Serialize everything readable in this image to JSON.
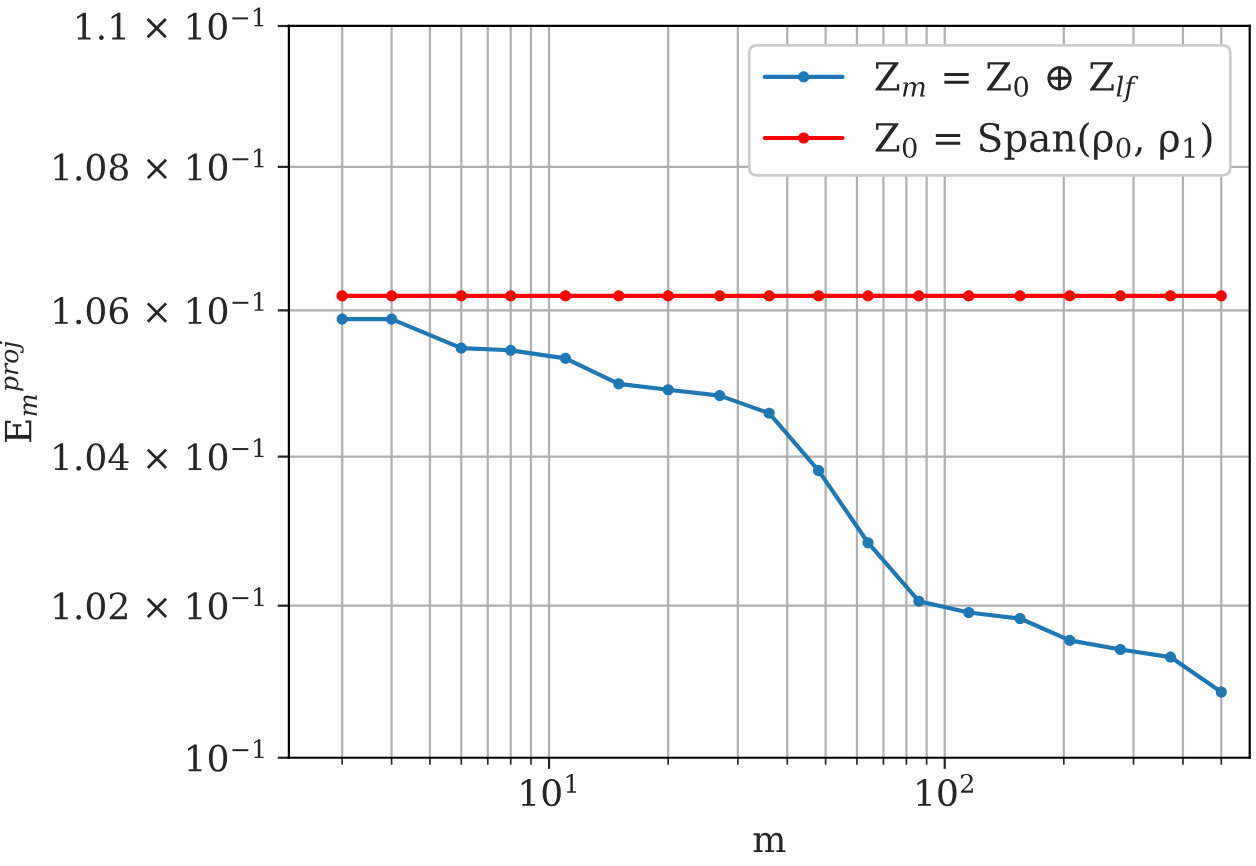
{
  "chart_data": {
    "type": "line",
    "xlabel": "m",
    "ylabel": "E$_{m}$$^{proj}$",
    "log": "xy",
    "grid": true,
    "legend": "top right",
    "marker": "circle",
    "line_style": "solid",
    "x": [
      3,
      4,
      6,
      8,
      11,
      15,
      20,
      27,
      36,
      48,
      64,
      86,
      115,
      155,
      207,
      278,
      372,
      500
    ],
    "xlim": [
      2.2,
      590
    ],
    "xticks": [
      {
        "value": 10,
        "label": "10$^{1}$"
      },
      {
        "value": 100,
        "label": "10$^{2}$"
      }
    ],
    "ylim": [
      0.1,
      0.11
    ],
    "yticks": [
      {
        "value": 0.1,
        "label": "10$^{−1}$"
      },
      {
        "value": 0.102,
        "label": "1.02 × 10$^{−1}$"
      },
      {
        "value": 0.104,
        "label": "1.04 × 10$^{−1}$"
      },
      {
        "value": 0.106,
        "label": "1.06 × 10$^{−1}$"
      },
      {
        "value": 0.108,
        "label": "1.08 × 10$^{−1}$"
      },
      {
        "value": 0.11,
        "label": "1.1 × 10$^{−1}$"
      }
    ],
    "series": [
      {
        "name": "Z$_{m}$ = Z$_{0}$ ⊕ Z$_{lf}$",
        "color": "#1f77b4",
        "values": [
          0.10588,
          0.10588,
          0.10548,
          0.10545,
          0.10534,
          0.10499,
          0.10491,
          0.10483,
          0.10459,
          0.10381,
          0.10284,
          0.10206,
          0.10191,
          0.10183,
          0.10154,
          0.10142,
          0.10132,
          0.10086
        ]
      },
      {
        "name": "Z$_{0}$ = Span(ρ$_{0}$, ρ$_{1}$)",
        "color": "#ff0000",
        "values": [
          0.1062,
          0.1062,
          0.1062,
          0.1062,
          0.1062,
          0.1062,
          0.1062,
          0.1062,
          0.1062,
          0.1062,
          0.1062,
          0.1062,
          0.1062,
          0.1062,
          0.1062,
          0.1062,
          0.1062,
          0.1062
        ]
      }
    ]
  }
}
